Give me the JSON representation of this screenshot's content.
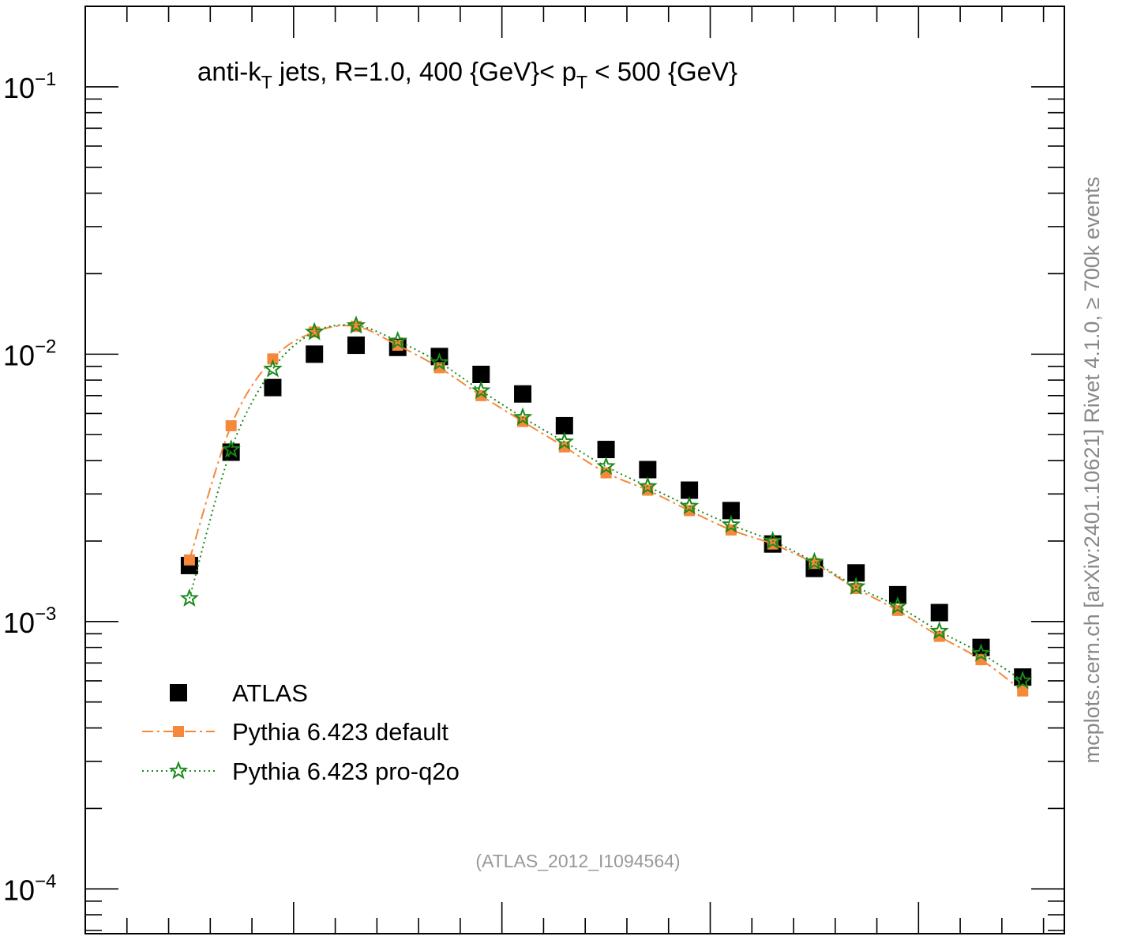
{
  "chart_data": {
    "type": "scatter",
    "title_parts": {
      "a": "anti-k",
      "a_sub": "T",
      "b": " jets, R=1.0, 400 {GeV}< p",
      "b_sub": "T",
      "c": " < 500 {GeV}"
    },
    "y_scale": "log",
    "y_tick_labels": [
      {
        "base": "10",
        "exp": "−1",
        "value": 0.1
      },
      {
        "base": "10",
        "exp": "−2",
        "value": 0.01
      },
      {
        "base": "10",
        "exp": "−3",
        "value": 0.001
      },
      {
        "base": "10",
        "exp": "−4",
        "value": 0.0001
      }
    ],
    "ylim": [
      6.8e-05,
      0.2
    ],
    "xlim": [
      0,
      23.5
    ],
    "legend_position": "bottom-left",
    "series": [
      {
        "name": "ATLAS",
        "marker": "square",
        "color": "#000000",
        "x": [
          2.5,
          3.5,
          4.5,
          5.5,
          6.5,
          7.5,
          8.5,
          9.5,
          10.5,
          11.5,
          12.5,
          13.5,
          14.5,
          15.5,
          16.5,
          17.5,
          18.5,
          19.5,
          20.5,
          21.5,
          22.5
        ],
        "y": [
          0.00162,
          0.0043,
          0.0075,
          0.01,
          0.0108,
          0.0106,
          0.0098,
          0.0084,
          0.0071,
          0.0054,
          0.0044,
          0.0037,
          0.0031,
          0.0026,
          0.00195,
          0.00158,
          0.00152,
          0.00126,
          0.00108,
          0.0008,
          0.00062
        ]
      },
      {
        "name": "Pythia 6.423 default",
        "marker": "square",
        "color": "#f5883a",
        "line": "dashdot",
        "x": [
          2.5,
          3.5,
          4.5,
          5.5,
          6.5,
          7.5,
          8.5,
          9.5,
          10.5,
          11.5,
          12.5,
          13.5,
          14.5,
          15.5,
          16.5,
          17.5,
          18.5,
          19.5,
          20.5,
          21.5,
          22.5
        ],
        "y": [
          0.0017,
          0.0054,
          0.0096,
          0.0121,
          0.0127,
          0.0108,
          0.0089,
          0.007,
          0.0056,
          0.0045,
          0.0036,
          0.0031,
          0.0026,
          0.0022,
          0.00195,
          0.00165,
          0.00133,
          0.0011,
          0.00088,
          0.00072,
          0.00055
        ]
      },
      {
        "name": "Pythia 6.423 pro-q2o",
        "marker": "star",
        "color": "#1a8a1a",
        "line": "dotted",
        "x": [
          2.5,
          3.5,
          4.5,
          5.5,
          6.5,
          7.5,
          8.5,
          9.5,
          10.5,
          11.5,
          12.5,
          13.5,
          14.5,
          15.5,
          16.5,
          17.5,
          18.5,
          19.5,
          20.5,
          21.5,
          22.5
        ],
        "y": [
          0.00122,
          0.0044,
          0.0088,
          0.0121,
          0.0128,
          0.0112,
          0.0093,
          0.0073,
          0.0058,
          0.0047,
          0.0038,
          0.0032,
          0.0027,
          0.0023,
          0.002,
          0.00167,
          0.00135,
          0.00114,
          0.00092,
          0.00076,
          0.0006
        ]
      }
    ],
    "annotation": "(ATLAS_2012_I1094564)",
    "side_label": "mcplots.cern.ch [arXiv:2401.10621]      Rivet 4.1.0, ≥ 700k events"
  },
  "colors": {
    "atlas": "#000000",
    "default": "#f5883a",
    "pro_q2o": "#1a8a1a",
    "annotation": "#999999",
    "side": "#888888"
  }
}
